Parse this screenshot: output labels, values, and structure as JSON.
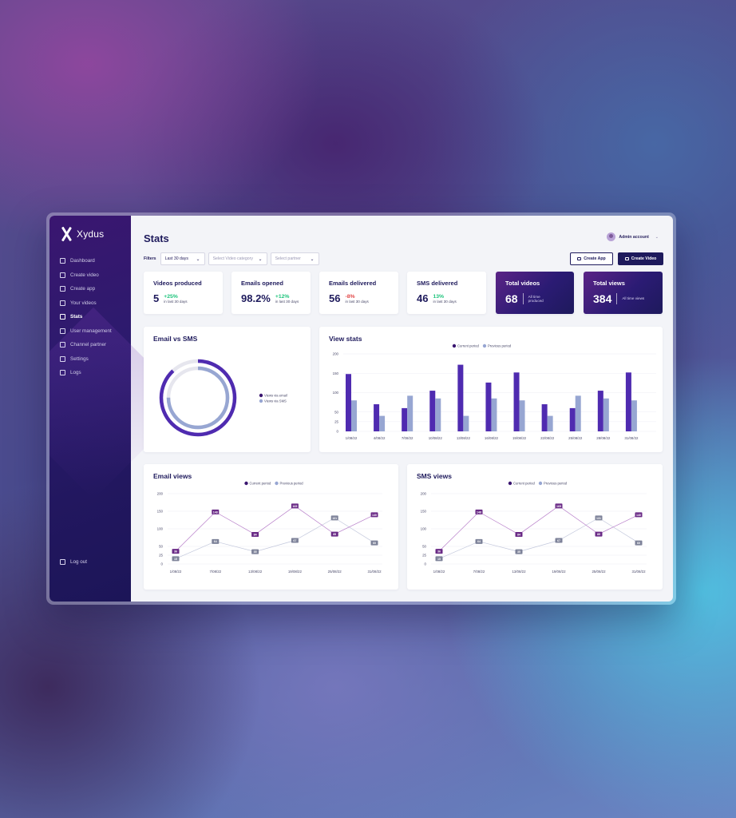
{
  "app": {
    "logo_text": "Xydus"
  },
  "sidebar": {
    "items": [
      {
        "label": "Dashboard",
        "icon": "dashboard-icon",
        "active": false
      },
      {
        "label": "Create video",
        "icon": "create-video-icon",
        "active": false
      },
      {
        "label": "Create app",
        "icon": "create-app-icon",
        "active": false
      },
      {
        "label": "Your videos",
        "icon": "your-videos-icon",
        "active": false
      },
      {
        "label": "Stats",
        "icon": "stats-icon",
        "active": true
      },
      {
        "label": "User management",
        "icon": "user-management-icon",
        "active": false
      },
      {
        "label": "Channel partner",
        "icon": "channel-partner-icon",
        "active": false
      },
      {
        "label": "Settings",
        "icon": "settings-icon",
        "active": false
      },
      {
        "label": "Logs",
        "icon": "logs-icon",
        "active": false
      }
    ],
    "logout": "Log out"
  },
  "header": {
    "title": "Stats",
    "account": "Admin account"
  },
  "filters": {
    "label": "Filters",
    "period": "Last 30 days",
    "category_placeholder": "Select Video category",
    "partner_placeholder": "Select partner"
  },
  "actions": {
    "create_app": "Create App",
    "create_video": "Create Video"
  },
  "stats": [
    {
      "title": "Videos produced",
      "value": "5",
      "change": "+25%",
      "direction": "up",
      "sub": "in last 30 days"
    },
    {
      "title": "Emails opened",
      "value": "98.2%",
      "change": "+12%",
      "direction": "up",
      "sub": "in last 30 days"
    },
    {
      "title": "Emails delivered",
      "value": "56",
      "change": "-8%",
      "direction": "down",
      "sub": "in last 30 days"
    },
    {
      "title": "SMS delivered",
      "value": "46",
      "change": "13%",
      "direction": "up",
      "sub": "in last 30 days"
    }
  ],
  "totals": [
    {
      "title": "Total videos",
      "value": "68",
      "sub": "All time produced"
    },
    {
      "title": "Total views",
      "value": "384",
      "sub": "All time views"
    }
  ],
  "colors": {
    "current": "#4f2bb0",
    "previous": "#97a6d2",
    "navy": "#1e1a5c",
    "line_current": "#b77ec9",
    "label_current": "#6a2a86",
    "label_previous": "#7d8299"
  },
  "chart_data": [
    {
      "type": "pie",
      "title": "Email vs SMS",
      "series": [
        {
          "name": "Views via email",
          "value": 0.88
        },
        {
          "name": "Views via SMS",
          "value": 0.75
        }
      ]
    },
    {
      "type": "bar",
      "title": "View stats",
      "categories": [
        "1/08/22",
        "4/08/22",
        "7/08/22",
        "10/08/22",
        "13/08/22",
        "16/08/22",
        "19/08/22",
        "22/08/22",
        "25/08/22",
        "28/08/22",
        "31/08/22"
      ],
      "series": [
        {
          "name": "Current period",
          "values": [
            148,
            70,
            60,
            105,
            172,
            126,
            152,
            70,
            60,
            105,
            152
          ]
        },
        {
          "name": "Previous period",
          "values": [
            80,
            40,
            92,
            85,
            40,
            85,
            80,
            40,
            92,
            85,
            80
          ]
        }
      ],
      "yticks": [
        0,
        25,
        50,
        100,
        150,
        200
      ],
      "ylim": [
        0,
        200
      ]
    },
    {
      "type": "line",
      "title": "Email views",
      "x": [
        "1/08/22",
        "7/08/22",
        "13/08/22",
        "19/08/22",
        "25/08/22",
        "31/08/22"
      ],
      "series": [
        {
          "name": "Current period",
          "values": [
            36,
            148,
            84,
            165,
            85,
            140
          ]
        },
        {
          "name": "Previous period",
          "values": [
            15,
            64,
            35,
            67,
            131,
            60
          ]
        }
      ],
      "yticks": [
        0,
        25,
        50,
        100,
        150,
        200
      ],
      "ylim": [
        0,
        200
      ]
    },
    {
      "type": "line",
      "title": "SMS views",
      "x": [
        "1/08/22",
        "7/08/22",
        "13/08/22",
        "19/08/22",
        "25/08/22",
        "31/08/22"
      ],
      "series": [
        {
          "name": "Current period",
          "values": [
            36,
            148,
            84,
            165,
            85,
            140
          ]
        },
        {
          "name": "Previous period",
          "values": [
            15,
            64,
            35,
            67,
            131,
            60
          ]
        }
      ],
      "yticks": [
        0,
        25,
        50,
        100,
        150,
        200
      ],
      "ylim": [
        0,
        200
      ]
    }
  ]
}
